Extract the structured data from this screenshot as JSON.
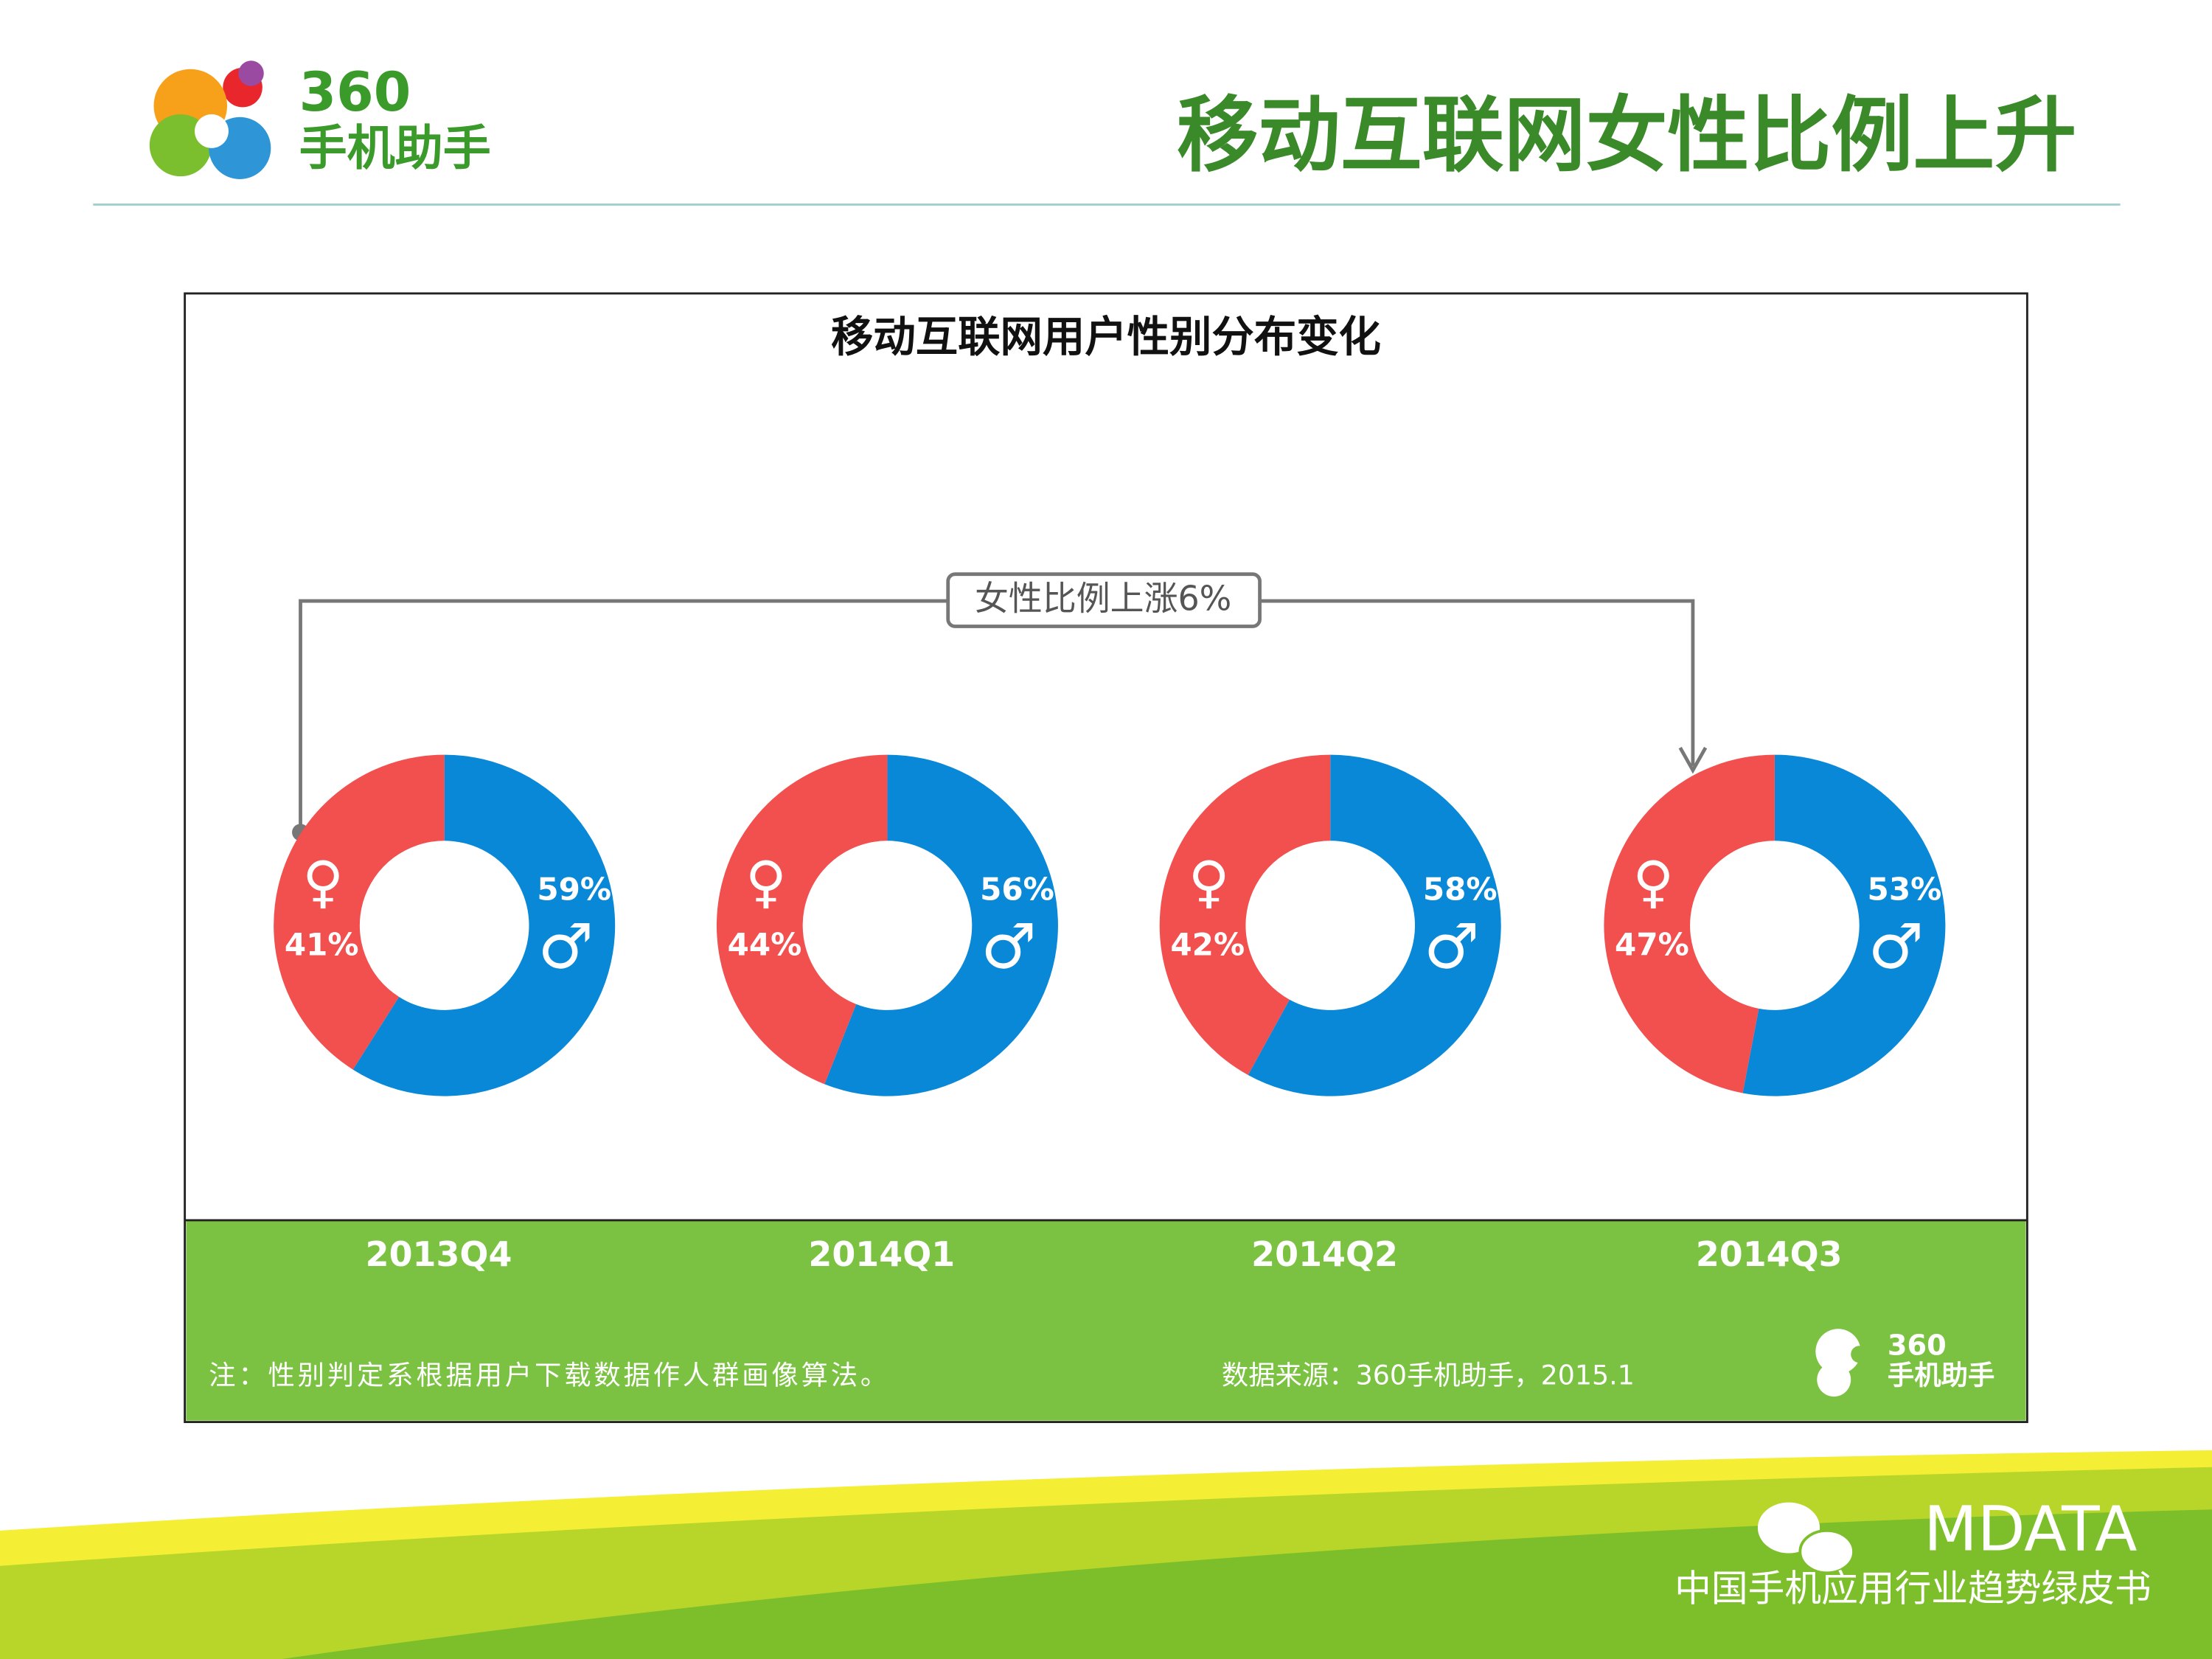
{
  "header": {
    "logo": "360",
    "logo_sub": "手机助手",
    "title": "移动互联网女性比例上升"
  },
  "panel_title": "移动互联网用户性别分布变化",
  "annotation": "女性比例上涨6%",
  "chart_data": [
    {
      "type": "pie",
      "title": "2013Q4",
      "categories": [
        "♀",
        "♂"
      ],
      "values": [
        41,
        59
      ],
      "value_labels": [
        "41%",
        "59%"
      ],
      "colors": [
        "#f24f4f",
        "#0a88d8"
      ]
    },
    {
      "type": "pie",
      "title": "2014Q1",
      "categories": [
        "♀",
        "♂"
      ],
      "values": [
        44,
        56
      ],
      "value_labels": [
        "44%",
        "56%"
      ],
      "colors": [
        "#f24f4f",
        "#0a88d8"
      ]
    },
    {
      "type": "pie",
      "title": "2014Q2",
      "categories": [
        "♀",
        "♂"
      ],
      "values": [
        42,
        58
      ],
      "value_labels": [
        "42%",
        "58%"
      ],
      "colors": [
        "#f24f4f",
        "#0a88d8"
      ]
    },
    {
      "type": "pie",
      "title": "2014Q3",
      "categories": [
        "♀",
        "♂"
      ],
      "values": [
        47,
        53
      ],
      "value_labels": [
        "47%",
        "53%"
      ],
      "colors": [
        "#f24f4f",
        "#0a88d8"
      ]
    }
  ],
  "note": "注：性别判定系根据用户下载数据作人群画像算法。",
  "source": "数据来源：360手机助手，2015.1",
  "panel_logo": {
    "top": "360",
    "bottom": "手机助手"
  },
  "footer": {
    "brand": "MDATA",
    "subtitle": "中国手机应用行业趋势绿皮书"
  }
}
